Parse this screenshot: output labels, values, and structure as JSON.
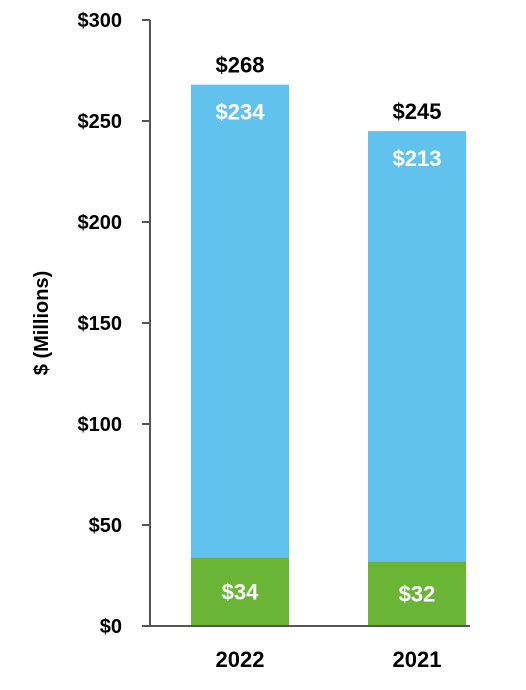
{
  "chart_data": {
    "type": "bar",
    "stacked": true,
    "title": "",
    "xlabel": "",
    "ylabel": "$ (Millions)",
    "categories": [
      "2022",
      "2021"
    ],
    "series": [
      {
        "values": [
          34,
          32
        ],
        "color": "#6BB536",
        "labels": [
          "$34",
          "$32"
        ]
      },
      {
        "values": [
          234,
          213
        ],
        "color": "#62C2EE",
        "labels": [
          "$234",
          "$213"
        ]
      }
    ],
    "totals": [
      268,
      245
    ],
    "total_labels": [
      "$268",
      "$245"
    ],
    "ylim": [
      0,
      300
    ],
    "yticks": [
      0,
      50,
      100,
      150,
      200,
      250,
      300
    ],
    "ytick_labels": [
      "$0",
      "$50",
      "$100",
      "$150",
      "$200",
      "$250",
      "$300"
    ],
    "grid": false,
    "legend": "none",
    "axis_color": "#555555"
  }
}
